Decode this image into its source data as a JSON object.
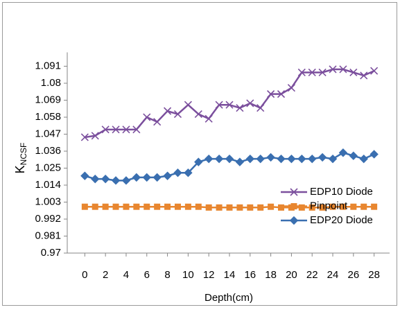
{
  "chart_data": {
    "type": "line",
    "xlabel": "Depth(cm)",
    "ylabel": "K",
    "ylabel_subscript": "NCSF",
    "x": [
      0,
      1,
      2,
      3,
      4,
      5,
      6,
      7,
      8,
      9,
      10,
      11,
      12,
      13,
      14,
      15,
      16,
      17,
      18,
      19,
      20,
      21,
      22,
      23,
      24,
      25,
      26,
      27,
      28
    ],
    "xlim": [
      -1.7,
      29.5
    ],
    "xticks": [
      0,
      2,
      4,
      6,
      8,
      10,
      12,
      14,
      16,
      18,
      20,
      22,
      24,
      26,
      28
    ],
    "ylim": [
      0.97,
      1.1
    ],
    "yticks": [
      0.97,
      0.981,
      0.992,
      1.003,
      1.014,
      1.025,
      1.036,
      1.047,
      1.058,
      1.069,
      1.08,
      1.091
    ],
    "legend": "lower right",
    "series": [
      {
        "name": "EDP10 Diode",
        "color": "#7b4f9d",
        "marker": "x",
        "values": [
          1.045,
          1.046,
          1.05,
          1.05,
          1.05,
          1.05,
          1.058,
          1.055,
          1.062,
          1.06,
          1.066,
          1.06,
          1.057,
          1.066,
          1.066,
          1.064,
          1.067,
          1.064,
          1.073,
          1.073,
          1.077,
          1.087,
          1.087,
          1.087,
          1.089,
          1.089,
          1.087,
          1.085,
          1.088
        ]
      },
      {
        "name": "Pinpoint",
        "color": "#e8862f",
        "marker": "square",
        "values": [
          1.0,
          1.0,
          1.0,
          1.0,
          1.0,
          1.0,
          1.0,
          1.0,
          1.0,
          1.0,
          1.0,
          1.0,
          0.9995,
          0.9995,
          0.9995,
          0.9995,
          0.9995,
          0.9995,
          1.0,
          0.9995,
          0.9995,
          0.9995,
          0.9995,
          0.9995,
          1.0,
          1.0,
          1.0,
          1.0,
          1.0
        ]
      },
      {
        "name": "EDP20 Diode",
        "color": "#3a6fb0",
        "marker": "diamond",
        "values": [
          1.02,
          1.018,
          1.018,
          1.017,
          1.017,
          1.019,
          1.019,
          1.019,
          1.02,
          1.022,
          1.022,
          1.029,
          1.031,
          1.031,
          1.031,
          1.029,
          1.031,
          1.031,
          1.032,
          1.031,
          1.031,
          1.031,
          1.031,
          1.032,
          1.031,
          1.035,
          1.033,
          1.031,
          1.034
        ]
      }
    ]
  }
}
